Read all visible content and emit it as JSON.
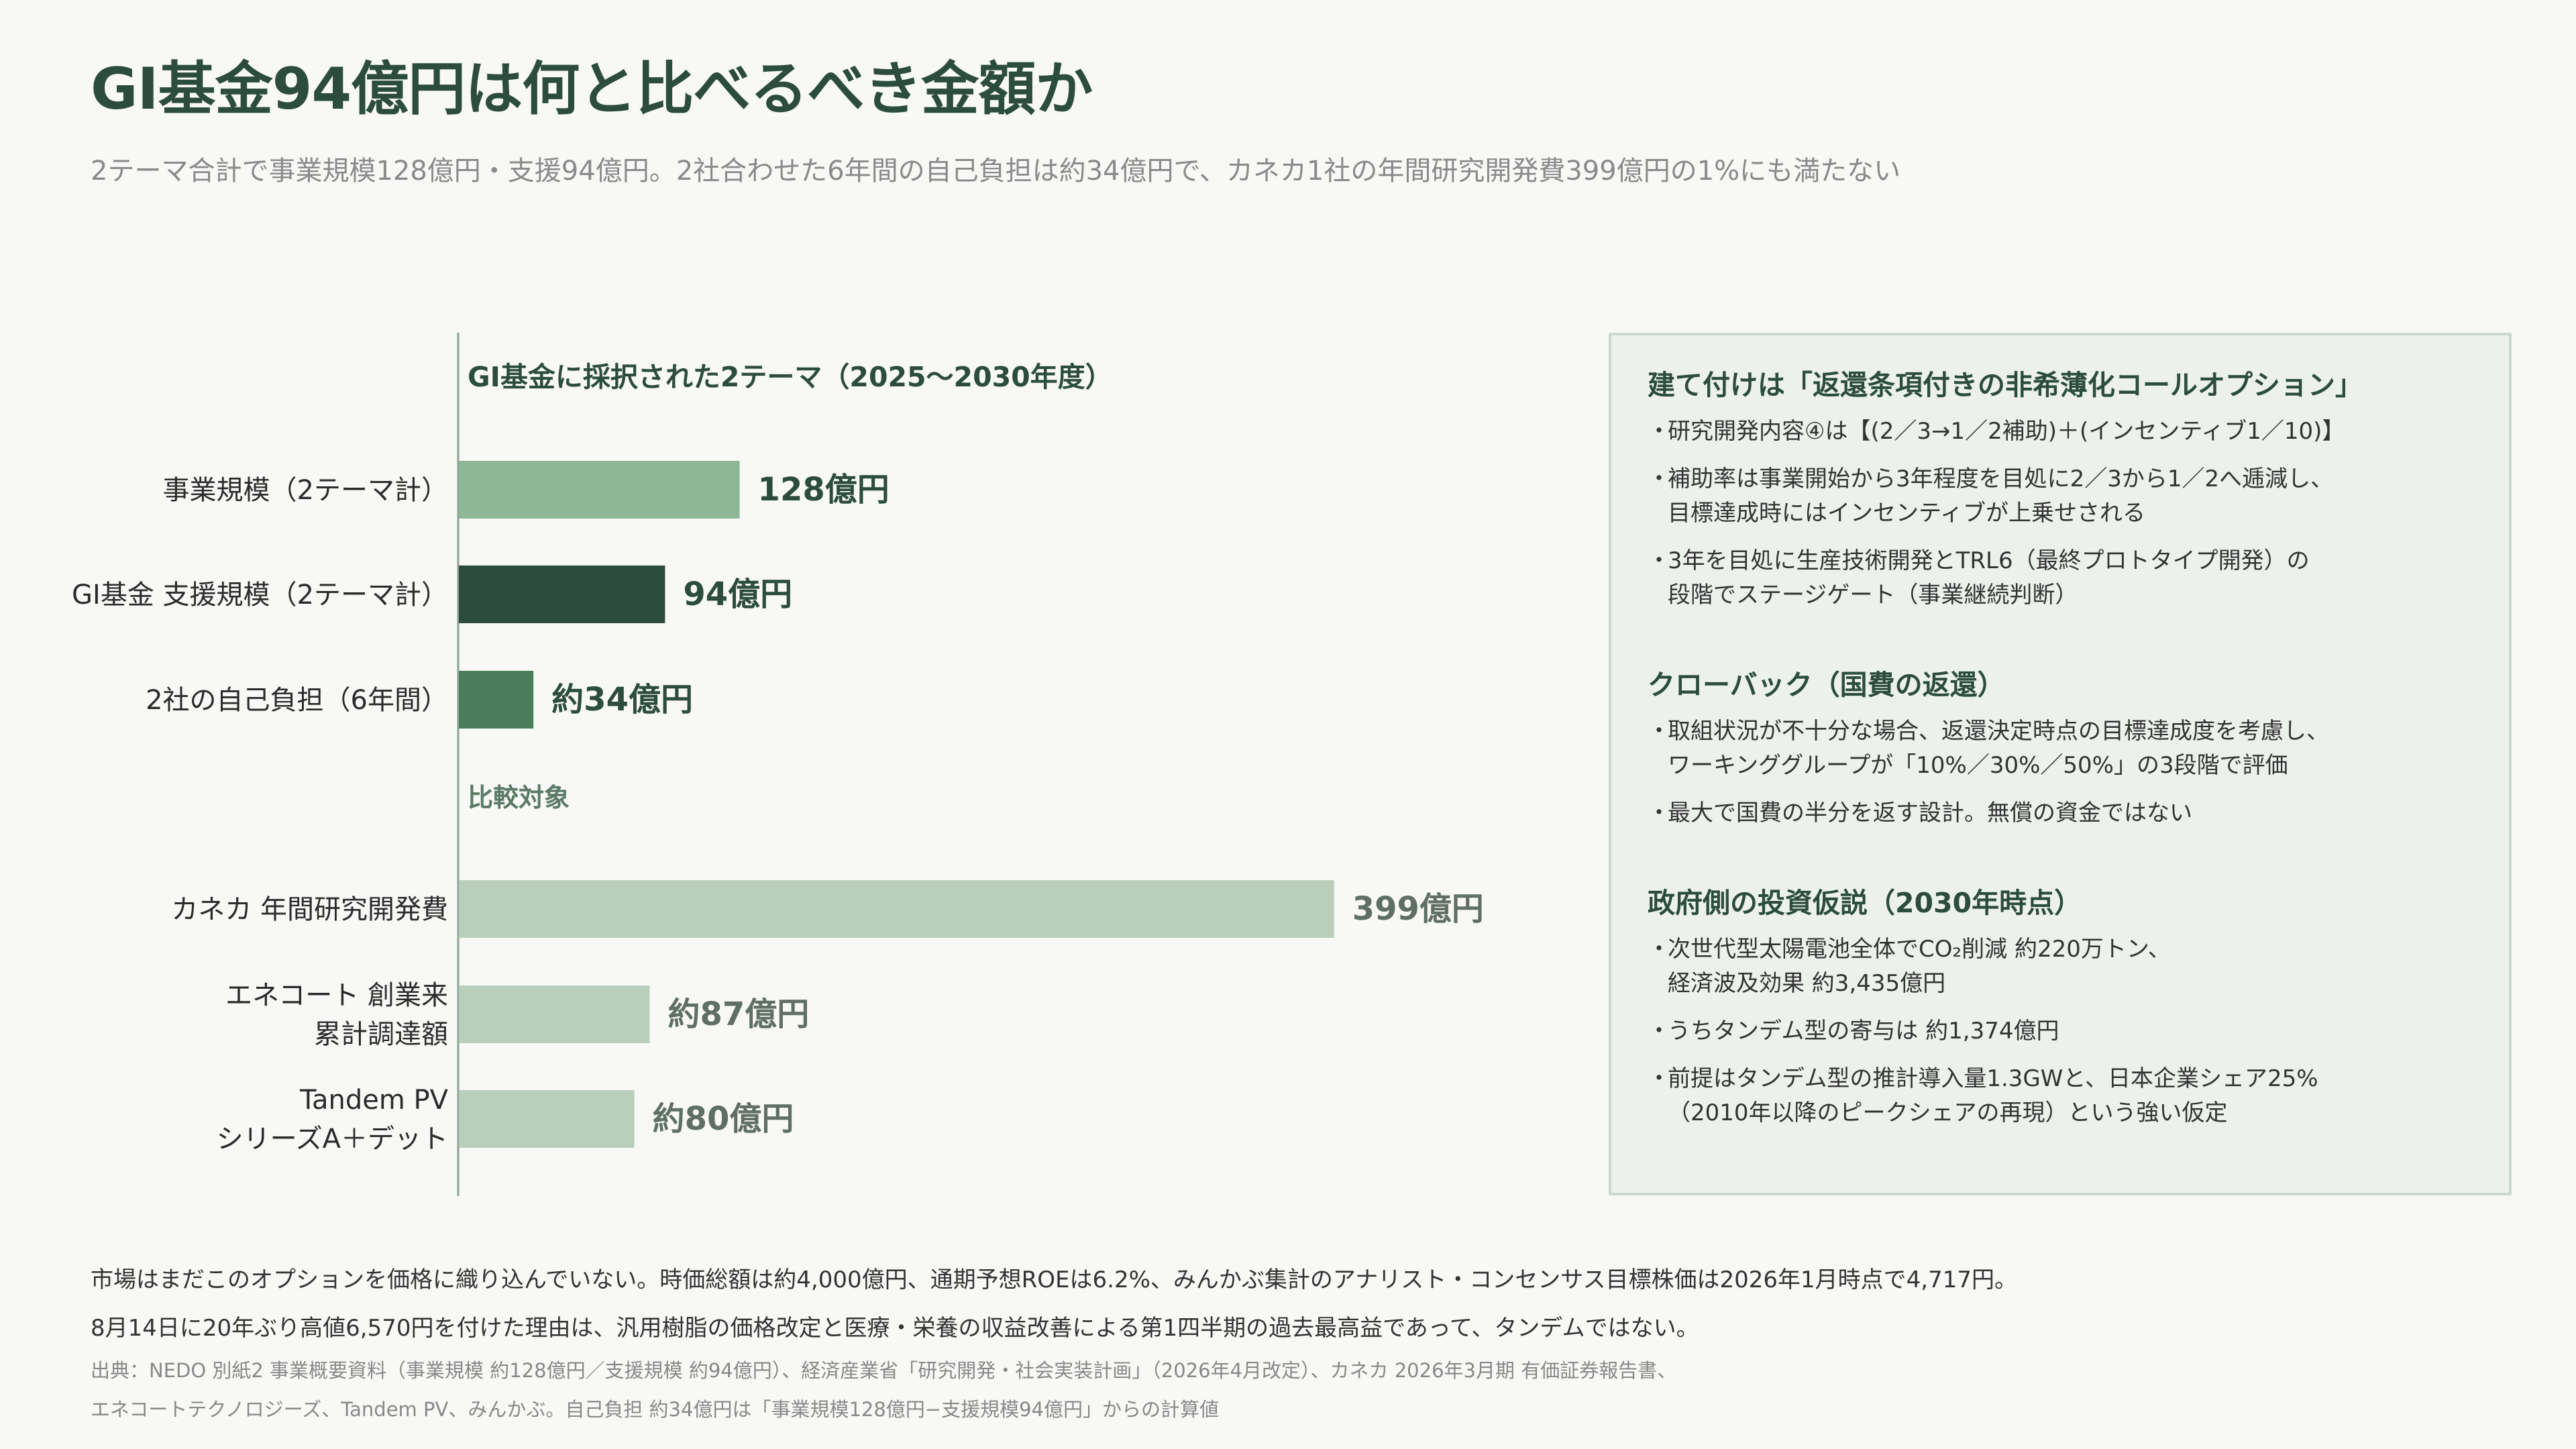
{
  "title": "GI基金94億円は何と比べるべき金額か",
  "subtitle": "2テーマ合計で事業規模128億円・支援94億円。2社合わせた6年間の自己負担は約34億円で、カネカ1社の年間研究開発費399億円の1%にも満たない",
  "chart_data": {
    "type": "bar",
    "orientation": "horizontal",
    "title": "GI基金に採択された2テーマ（2025〜2030年度）",
    "group_label": "比較対象",
    "unit": "億円",
    "series": [
      {
        "label_lines": [
          "事業規模（2テーマ計）"
        ],
        "value": 128,
        "value_label": "128億円",
        "color": "#8db796",
        "group": "main"
      },
      {
        "label_lines": [
          "GI基金 支援規模（2テーマ計）"
        ],
        "value": 94,
        "value_label": "94億円",
        "color": "#2b4c3e",
        "group": "main"
      },
      {
        "label_lines": [
          "2社の自己負担（6年間）"
        ],
        "value": 34,
        "value_label": "約34億円",
        "color": "#4a7d5c",
        "group": "main"
      },
      {
        "label_lines": [
          "カネカ 年間研究開発費"
        ],
        "value": 399,
        "value_label": "399億円",
        "color": "#b9cfbc",
        "group": "comparison"
      },
      {
        "label_lines": [
          "エネコート 創業来",
          "累計調達額"
        ],
        "value": 87,
        "value_label": "約87億円",
        "color": "#b9cfbc",
        "group": "comparison"
      },
      {
        "label_lines": [
          "Tandem PV",
          "シリーズA＋デット"
        ],
        "value": 80,
        "value_label": "約80億円",
        "color": "#b9cfbc",
        "group": "comparison"
      }
    ]
  },
  "panel": {
    "sections": [
      {
        "title": "建て付けは「返還条項付きの非希薄化コールオプション」",
        "bullets": [
          "研究開発内容④は【(2／3→1／2補助)＋(インセンティブ1／10)】",
          "補助率は事業開始から3年程度を目処に2／3から1／2へ逓減し、\n目標達成時にはインセンティブが上乗せされる",
          "3年を目処に生産技術開発とTRL6（最終プロトタイプ開発）の\n段階でステージゲート（事業継続判断）"
        ]
      },
      {
        "title": "クローバック（国費の返還）",
        "bullets": [
          "取組状況が不十分な場合、返還決定時点の目標達成度を考慮し、\nワーキンググループが「10%／30%／50%」の3段階で評価",
          "最大で国費の半分を返す設計。無償の資金ではない"
        ]
      },
      {
        "title": "政府側の投資仮説（2030年時点）",
        "bullets": [
          "次世代型太陽電池全体でCO₂削減 約220万トン、\n経済波及効果 約3,435億円",
          "うちタンデム型の寄与は 約1,374億円",
          "前提はタンデム型の推計導入量1.3GWと、日本企業シェア25%\n（2010年以降のピークシェアの再現）という強い仮定"
        ]
      }
    ]
  },
  "footer": {
    "line1": "市場はまだこのオプションを価格に織り込んでいない。時価総額は約4,000億円、通期予想ROEは6.2%、みんかぶ集計のアナリスト・コンセンサス目標株価は2026年1月時点で4,717円。",
    "line2": "8月14日に20年ぶり高値6,570円を付けた理由は、汎用樹脂の価格改定と医療・栄養の収益改善による第1四半期の過去最高益であって、タンデムではない。",
    "source1": "出典：NEDO 別紙2 事業概要資料（事業規模 約128億円／支援規模 約94億円）、経済産業省「研究開発・社会実装計画」（2026年4月改定）、カネカ 2026年3月期 有価証券報告書、",
    "source2": "エネコートテクノロジーズ、Tandem PV、みんかぶ。自己負担 約34億円は「事業規模128億円−支援規模94億円」からの計算値"
  }
}
